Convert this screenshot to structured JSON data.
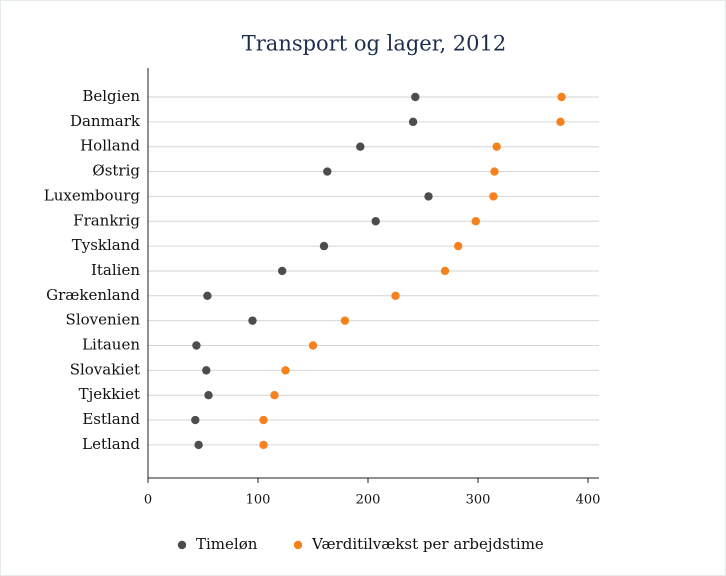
{
  "chart_data": {
    "type": "dot",
    "title": "Transport og lager, 2012",
    "categories": [
      "Belgien",
      "Danmark",
      "Holland",
      "Østrig",
      "Luxembourg",
      "Frankrig",
      "Tyskland",
      "Italien",
      "Grækenland",
      "Slovenien",
      "Litauen",
      "Slovakiet",
      "Tjekkiet",
      "Estland",
      "Letland"
    ],
    "series": [
      {
        "name": "Timeløn",
        "color": "#4d4d4d",
        "values": [
          243,
          241,
          193,
          163,
          255,
          207,
          160,
          122,
          54,
          95,
          44,
          53,
          55,
          43,
          46
        ]
      },
      {
        "name": "Værditilvækst per arbejdstime",
        "color": "#f5821f",
        "values": [
          376,
          375,
          317,
          315,
          314,
          298,
          282,
          270,
          225,
          179,
          150,
          125,
          115,
          105,
          105
        ]
      }
    ],
    "xlim": [
      0,
      410
    ],
    "xticks": [
      0,
      100,
      200,
      300,
      400
    ],
    "grid": true,
    "legend": "bottom"
  }
}
